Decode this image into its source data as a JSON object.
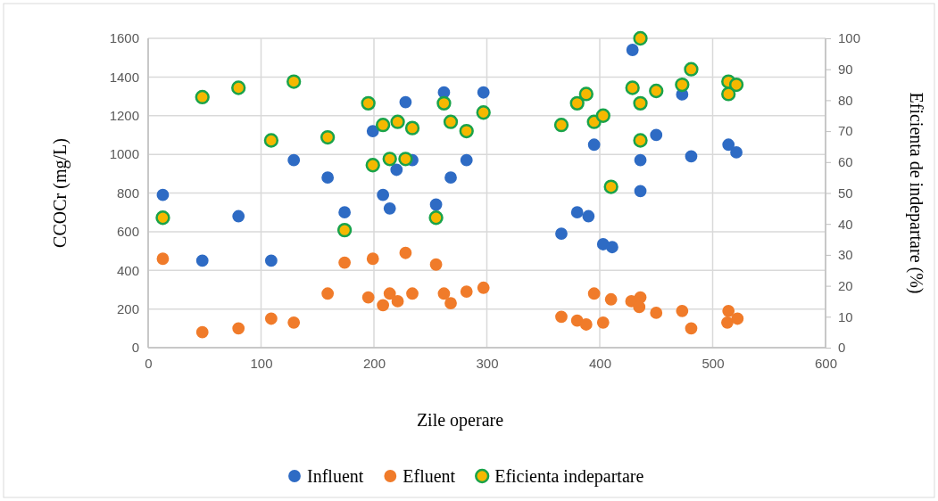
{
  "chart_data": {
    "type": "scatter",
    "xlabel": "Zile operare",
    "ylabel": "CCOCr (mg/L)",
    "y2label": "Eficienta de indepartare (%)",
    "xlim": [
      0,
      600
    ],
    "xticks": [
      0,
      100,
      200,
      300,
      400,
      500,
      600
    ],
    "ylim": [
      0,
      1600
    ],
    "yticks": [
      0,
      200,
      400,
      600,
      800,
      1000,
      1200,
      1400,
      1600
    ],
    "y2lim": [
      0,
      100
    ],
    "y2ticks": [
      0,
      10,
      20,
      30,
      40,
      50,
      60,
      70,
      80,
      90,
      100
    ],
    "grid": true,
    "legend": "bottom",
    "marker": "circle",
    "series": [
      {
        "name": "Influent",
        "color": "#2e6bc4",
        "x": [
          13,
          48,
          80,
          109,
          129,
          159,
          174,
          199,
          208,
          214,
          220,
          228,
          234,
          255,
          268,
          282,
          297,
          262,
          429,
          473,
          450,
          395,
          436,
          481,
          514,
          521,
          436,
          380,
          390,
          366,
          403,
          411
        ],
        "values": [
          790,
          450,
          680,
          450,
          970,
          880,
          700,
          1120,
          790,
          720,
          920,
          1270,
          970,
          740,
          880,
          970,
          1320,
          1320,
          1540,
          1310,
          1100,
          1050,
          970,
          990,
          1050,
          1010,
          810,
          700,
          680,
          590,
          535,
          520
        ]
      },
      {
        "name": "Efluent",
        "color": "#f07b2a",
        "x": [
          13,
          48,
          80,
          109,
          129,
          159,
          174,
          199,
          195,
          208,
          214,
          221,
          228,
          234,
          255,
          262,
          268,
          282,
          297,
          366,
          380,
          388,
          395,
          403,
          410,
          428,
          436,
          435,
          450,
          473,
          481,
          514,
          513,
          522
        ],
        "values": [
          460,
          80,
          100,
          150,
          130,
          280,
          440,
          460,
          260,
          220,
          280,
          240,
          490,
          280,
          430,
          280,
          230,
          290,
          310,
          160,
          140,
          120,
          280,
          130,
          250,
          240,
          260,
          210,
          180,
          190,
          100,
          190,
          130,
          150
        ]
      },
      {
        "name": "Eficienta indepartare",
        "color": "#f5b800",
        "axis": "y2",
        "x": [
          13,
          48,
          80,
          129,
          109,
          159,
          174,
          195,
          199,
          208,
          221,
          234,
          214,
          228,
          262,
          268,
          282,
          297,
          255,
          436,
          366,
          380,
          388,
          395,
          403,
          410,
          429,
          436,
          436,
          450,
          473,
          481,
          514,
          521,
          514
        ],
        "values": [
          42,
          81,
          84,
          86,
          67,
          68,
          38,
          79,
          59,
          72,
          73,
          71,
          61,
          61,
          79,
          73,
          70,
          76,
          42,
          100,
          72,
          79,
          82,
          73,
          75,
          52,
          84,
          79,
          67,
          83,
          85,
          90,
          86,
          85,
          82
        ]
      }
    ]
  }
}
